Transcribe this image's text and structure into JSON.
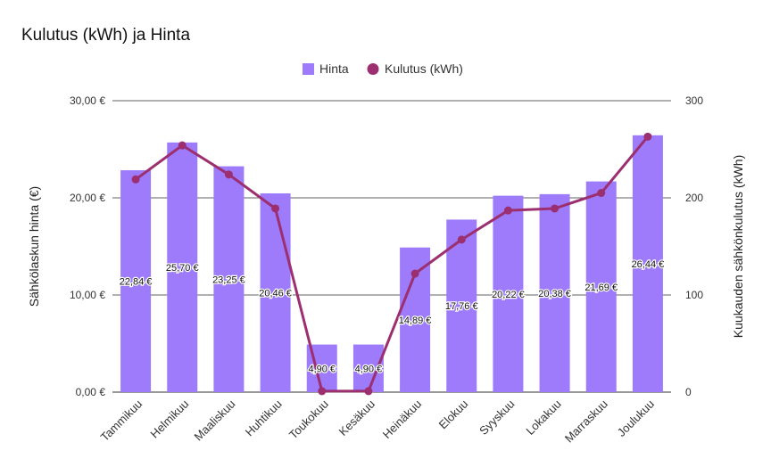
{
  "chart_data": {
    "type": "bar",
    "title": "Kulutus (kWh) ja Hinta",
    "categories": [
      "Tammikuu",
      "Helmikuu",
      "Maaliskuu",
      "Huhtikuu",
      "Toukokuu",
      "Kesäkuu",
      "Heinäkuu",
      "Elokuu",
      "Syyskuu",
      "Lokakuu",
      "Marraskuu",
      "Joulukuu"
    ],
    "series": [
      {
        "name": "Hinta",
        "type": "bar",
        "axis": "left",
        "color": "#9d7bfa",
        "values": [
          22.84,
          25.7,
          23.25,
          20.46,
          4.9,
          4.9,
          14.89,
          17.76,
          20.22,
          20.38,
          21.69,
          26.44
        ],
        "labels": [
          "22,84 €",
          "25,70 €",
          "23,25 €",
          "20,46 €",
          "4,90 €",
          "4,90 €",
          "14,89 €",
          "17,76 €",
          "20,22 €",
          "20,38 €",
          "21,69 €",
          "26,44 €"
        ]
      },
      {
        "name": "Kulutus (kWh)",
        "type": "line",
        "axis": "right",
        "color": "#9c2f6f",
        "values": [
          219,
          254,
          224,
          189,
          1,
          1,
          122,
          157,
          187,
          189,
          205,
          263
        ]
      }
    ],
    "ylabel": "Sähkölaskun hinta (€)",
    "ylabel_right": "Kuukauden sähkönkulutus (kWh)",
    "ylim": [
      0,
      30
    ],
    "ylim_right": [
      0,
      300
    ],
    "yticks": [
      "0,00 €",
      "10,00 €",
      "20,00 €",
      "30,00 €"
    ],
    "yticks_right": [
      "0",
      "100",
      "200",
      "300"
    ],
    "legend_position": "top-center",
    "grid": true
  }
}
